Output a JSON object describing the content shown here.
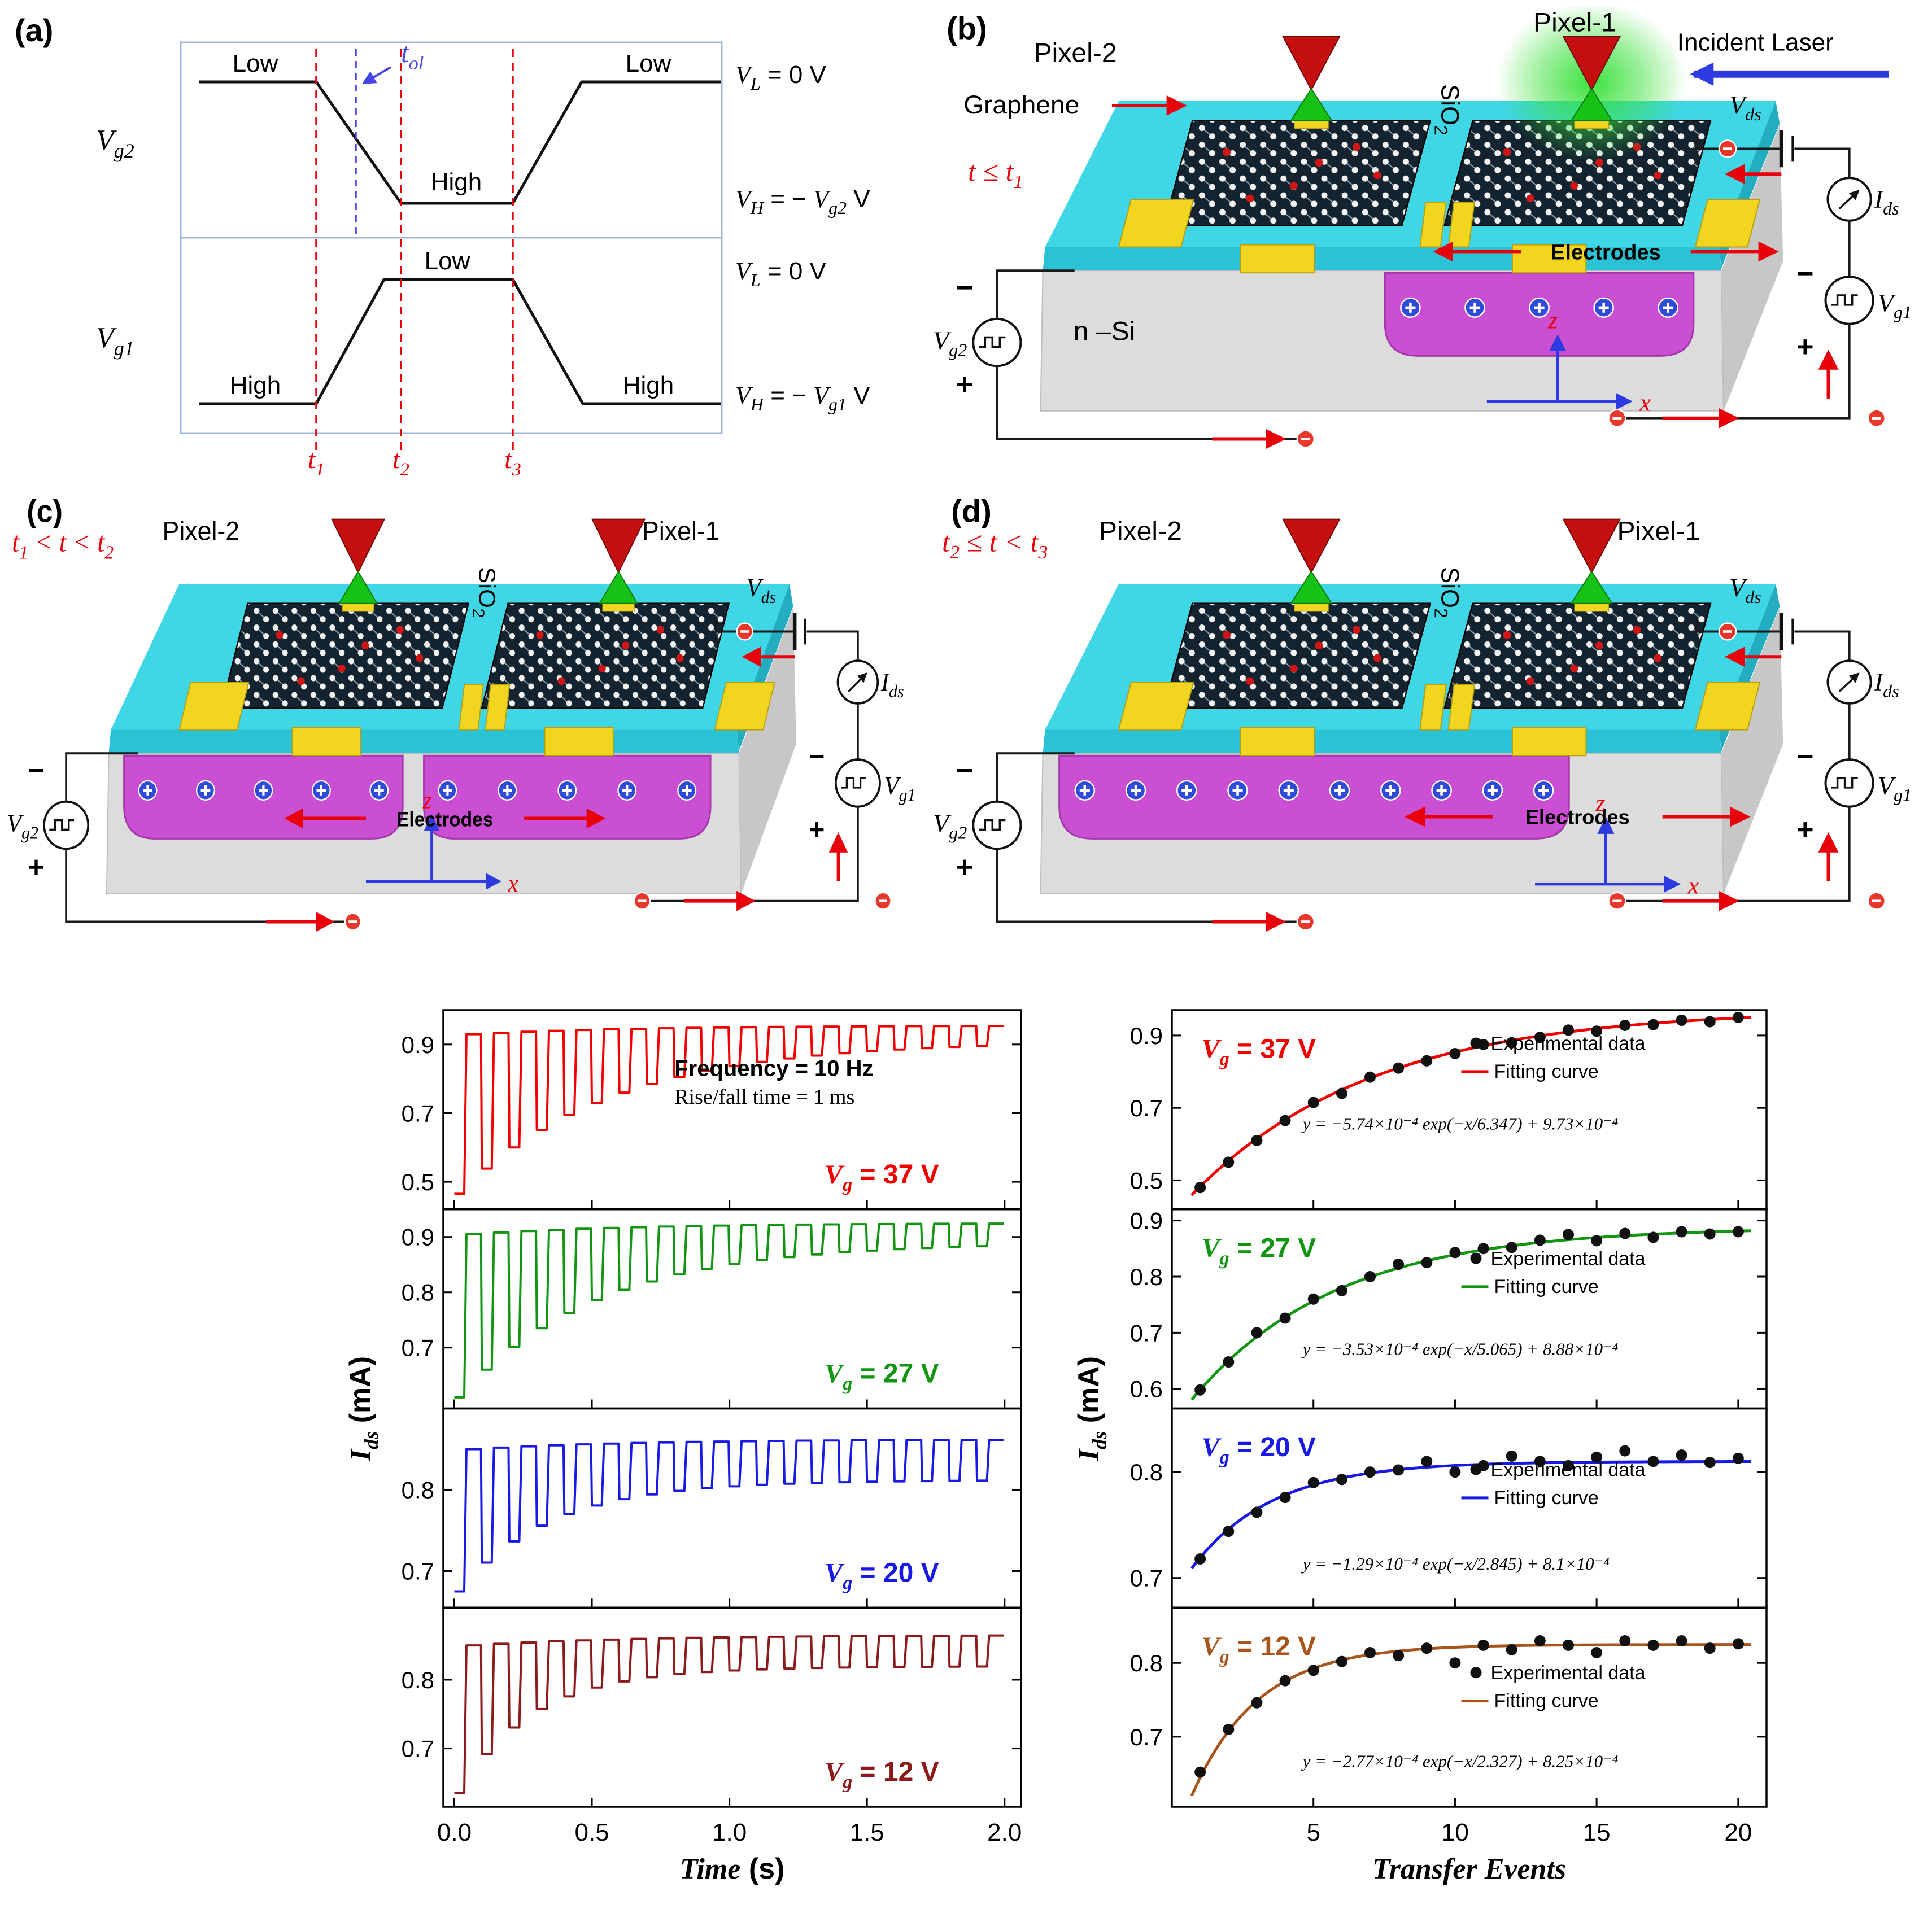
{
  "figure": {
    "background": "#ffffff",
    "accent_red": "#e8000b",
    "accent_blue": "#4646e8",
    "cyan_sio2": "#3fd6e6",
    "magenta_charge": "#cb4fd3",
    "electrode_yellow": "#f2d51f"
  },
  "a": {
    "tag": "(a)",
    "y2": {
      "m": "V",
      "s": "g2"
    },
    "y1": {
      "m": "V",
      "s": "g1"
    },
    "tol": {
      "m": "t",
      "s": "ol"
    },
    "w2a": "Low",
    "w2b": "High",
    "w2c": "Low",
    "w1a": "High",
    "w1b": "Low",
    "w1c": "High",
    "r1": {
      "m": "V",
      "s": "L",
      "r": " = 0 V"
    },
    "r2": {
      "m": "V",
      "s": "H",
      "r": " = − ",
      "m2": "V",
      "s2": "g2",
      "r2": " V"
    },
    "r3": {
      "m": "V",
      "s": "L",
      "r": " = 0 V"
    },
    "r4": {
      "m": "V",
      "s": "H",
      "r": " = − ",
      "m2": "V",
      "s2": "g1",
      "r2": " V"
    },
    "t1": {
      "m": "t",
      "s": "1"
    },
    "t2": {
      "m": "t",
      "s": "2"
    },
    "t3": {
      "m": "t",
      "s": "3"
    }
  },
  "b": {
    "tag": "(b)",
    "time": {
      "a": "t ≤ t",
      "b": "1",
      "c": "",
      "d": ""
    },
    "pixel2": "Pixel-2",
    "pixel1": "Pixel-1",
    "incident": "Incident Laser",
    "graphene": "Graphene",
    "sio2": {
      "m": "SiO",
      "s": "2"
    },
    "nsi": "n –Si",
    "electrodes": "Electrodes",
    "vds": {
      "m": "V",
      "s": "ds"
    },
    "ids": {
      "m": "I",
      "s": "ds"
    },
    "vg1": {
      "m": "V",
      "s": "g1"
    },
    "vg2": {
      "m": "V",
      "s": "g2"
    },
    "z": "z",
    "x": "x",
    "plus": "+",
    "minus": "−"
  },
  "c": {
    "tag": "(c)",
    "time": {
      "a": "t",
      "b": "1",
      "c": " < t < t",
      "d": "2"
    },
    "pixel2": "Pixel-2",
    "pixel1": "Pixel-1",
    "sio2": {
      "m": "SiO",
      "s": "2"
    },
    "electrodes": "Electrodes",
    "vds": {
      "m": "V",
      "s": "ds"
    },
    "ids": {
      "m": "I",
      "s": "ds"
    },
    "vg1": {
      "m": "V",
      "s": "g1"
    },
    "vg2": {
      "m": "V",
      "s": "g2"
    },
    "z": "z",
    "x": "x",
    "plus": "+",
    "minus": "−"
  },
  "d": {
    "tag": "(d)",
    "time": {
      "a": "t",
      "b": "2",
      "c": " ≤ t < t",
      "d": "3"
    },
    "pixel2": "Pixel-2",
    "pixel1": "Pixel-1",
    "sio2": {
      "m": "SiO",
      "s": "2"
    },
    "electrodes": "Electrodes",
    "vds": {
      "m": "V",
      "s": "ds"
    },
    "ids": {
      "m": "I",
      "s": "ds"
    },
    "vg1": {
      "m": "V",
      "s": "g1"
    },
    "vg2": {
      "m": "V",
      "s": "g2"
    },
    "z": "z",
    "x": "x",
    "plus": "+",
    "minus": "−"
  },
  "chart_data": [
    {
      "id": "pulse-train",
      "type": "line",
      "xlabel": {
        "i": "Time",
        "r": " (s)"
      },
      "ylabel": {
        "i": "I",
        "sub": "ds",
        "r": " (mA)"
      },
      "xlim": [
        -0.04,
        2.06
      ],
      "xticks": [
        0,
        0.5,
        1,
        1.5,
        2
      ],
      "annotations": [
        "Frequency = 10 Hz",
        "Rise/fall time = 1 ms"
      ],
      "panels": [
        {
          "vg": {
            "m": "V",
            "s": "g",
            "r": " =  37  V"
          },
          "color": "#f20000",
          "ylim": [
            0.42,
            1.0
          ],
          "yticks": [
            0.5,
            0.7,
            0.9
          ],
          "pulse": {
            "cycles": 20,
            "period": 0.1,
            "top_start": 0.93,
            "top_end": 0.955,
            "top_tau": 6,
            "depth_start": 0.465,
            "depth_end": 0.045,
            "depth_tau": 5.5
          }
        },
        {
          "vg": {
            "m": "V",
            "s": "g",
            "r": " =  27  V"
          },
          "color": "#129612",
          "ylim": [
            0.59,
            0.95
          ],
          "yticks": [
            0.7,
            0.8,
            0.9
          ],
          "pulse": {
            "cycles": 20,
            "period": 0.1,
            "top_start": 0.905,
            "top_end": 0.925,
            "top_tau": 6,
            "depth_start": 0.295,
            "depth_end": 0.035,
            "depth_tau": 5
          }
        },
        {
          "vg": {
            "m": "V",
            "s": "g",
            "r": " =  20  V"
          },
          "color": "#1919e6",
          "ylim": [
            0.655,
            0.9
          ],
          "yticks": [
            0.7,
            0.8
          ],
          "pulse": {
            "cycles": 20,
            "period": 0.1,
            "top_start": 0.85,
            "top_end": 0.862,
            "top_tau": 6,
            "depth_start": 0.175,
            "depth_end": 0.05,
            "depth_tau": 3.2
          }
        },
        {
          "vg": {
            "m": "V",
            "s": "g",
            "r": " =  12  V"
          },
          "color": "#8c1a1a",
          "ylim": [
            0.615,
            0.905
          ],
          "yticks": [
            0.7,
            0.8
          ],
          "pulse": {
            "cycles": 20,
            "period": 0.1,
            "top_start": 0.85,
            "top_end": 0.865,
            "top_tau": 6,
            "depth_start": 0.215,
            "depth_end": 0.045,
            "depth_tau": 2.6
          }
        }
      ]
    },
    {
      "id": "transfer-events",
      "type": "scatter",
      "xlabel": {
        "i": "Transfer Events",
        "r": ""
      },
      "ylabel": {
        "i": "I",
        "sub": "ds",
        "r": " (mA)"
      },
      "xlim": [
        0,
        21
      ],
      "xticks": [
        5,
        10,
        15,
        20
      ],
      "legend": [
        "Experimental data",
        "Fitting curve"
      ],
      "panels": [
        {
          "vg": {
            "m": "V",
            "s": "g",
            "r": " =  37  V"
          },
          "color": "#f20000",
          "ylim": [
            0.42,
            0.97
          ],
          "yticks": [
            0.5,
            0.7,
            0.9
          ],
          "equation": "y = −5.74×10⁻⁴ exp(−x/6.347) + 9.73×10⁻⁴",
          "fit": {
            "A": -0.574,
            "tau": 6.347,
            "C": 0.973
          },
          "x": [
            1,
            2,
            3,
            4,
            5,
            6,
            7,
            8,
            9,
            10,
            11,
            12,
            13,
            14,
            15,
            16,
            17,
            18,
            19,
            20
          ],
          "y": [
            0.48,
            0.55,
            0.61,
            0.665,
            0.715,
            0.74,
            0.785,
            0.81,
            0.83,
            0.85,
            0.875,
            0.88,
            0.895,
            0.915,
            0.912,
            0.928,
            0.93,
            0.942,
            0.938,
            0.95
          ]
        },
        {
          "vg": {
            "m": "V",
            "s": "g",
            "r": " =  27  V"
          },
          "color": "#129612",
          "ylim": [
            0.565,
            0.92
          ],
          "yticks": [
            0.6,
            0.7,
            0.8,
            0.9
          ],
          "equation": "y = −3.53×10⁻⁴ exp(−x/5.065) + 8.88×10⁻⁴",
          "fit": {
            "A": -0.353,
            "tau": 5.065,
            "C": 0.888
          },
          "x": [
            1,
            2,
            3,
            4,
            5,
            6,
            7,
            8,
            9,
            10,
            11,
            12,
            13,
            14,
            15,
            16,
            17,
            18,
            19,
            20
          ],
          "y": [
            0.598,
            0.648,
            0.7,
            0.726,
            0.76,
            0.775,
            0.8,
            0.822,
            0.825,
            0.843,
            0.85,
            0.852,
            0.865,
            0.875,
            0.864,
            0.877,
            0.87,
            0.88,
            0.876,
            0.88
          ]
        },
        {
          "vg": {
            "m": "V",
            "s": "g",
            "r": " =  20  V"
          },
          "color": "#1919e6",
          "ylim": [
            0.672,
            0.86
          ],
          "yticks": [
            0.7,
            0.8
          ],
          "equation": "y = −1.29×10⁻⁴ exp(−x/2.845) + 8.1×10⁻⁴",
          "fit": {
            "A": -0.129,
            "tau": 2.845,
            "C": 0.81
          },
          "x": [
            1,
            2,
            3,
            4,
            5,
            6,
            7,
            8,
            9,
            10,
            11,
            12,
            13,
            14,
            15,
            16,
            17,
            18,
            19,
            20
          ],
          "y": [
            0.718,
            0.744,
            0.762,
            0.776,
            0.79,
            0.793,
            0.8,
            0.802,
            0.81,
            0.8,
            0.806,
            0.815,
            0.81,
            0.806,
            0.814,
            0.82,
            0.81,
            0.816,
            0.809,
            0.813
          ]
        },
        {
          "vg": {
            "m": "V",
            "s": "g",
            "r": " =  12  V"
          },
          "color": "#a8551c",
          "ylim": [
            0.605,
            0.875
          ],
          "yticks": [
            0.7,
            0.8
          ],
          "equation": "y = −2.77×10⁻⁴ exp(−x/2.327) + 8.25×10⁻⁴",
          "fit": {
            "A": -0.277,
            "tau": 2.327,
            "C": 0.825
          },
          "x": [
            1,
            2,
            3,
            4,
            5,
            6,
            7,
            8,
            9,
            10,
            11,
            12,
            13,
            14,
            15,
            16,
            17,
            18,
            19,
            20
          ],
          "y": [
            0.652,
            0.71,
            0.746,
            0.776,
            0.79,
            0.802,
            0.814,
            0.81,
            0.82,
            0.8,
            0.824,
            0.818,
            0.83,
            0.824,
            0.814,
            0.83,
            0.824,
            0.83,
            0.82,
            0.826
          ]
        }
      ]
    }
  ]
}
